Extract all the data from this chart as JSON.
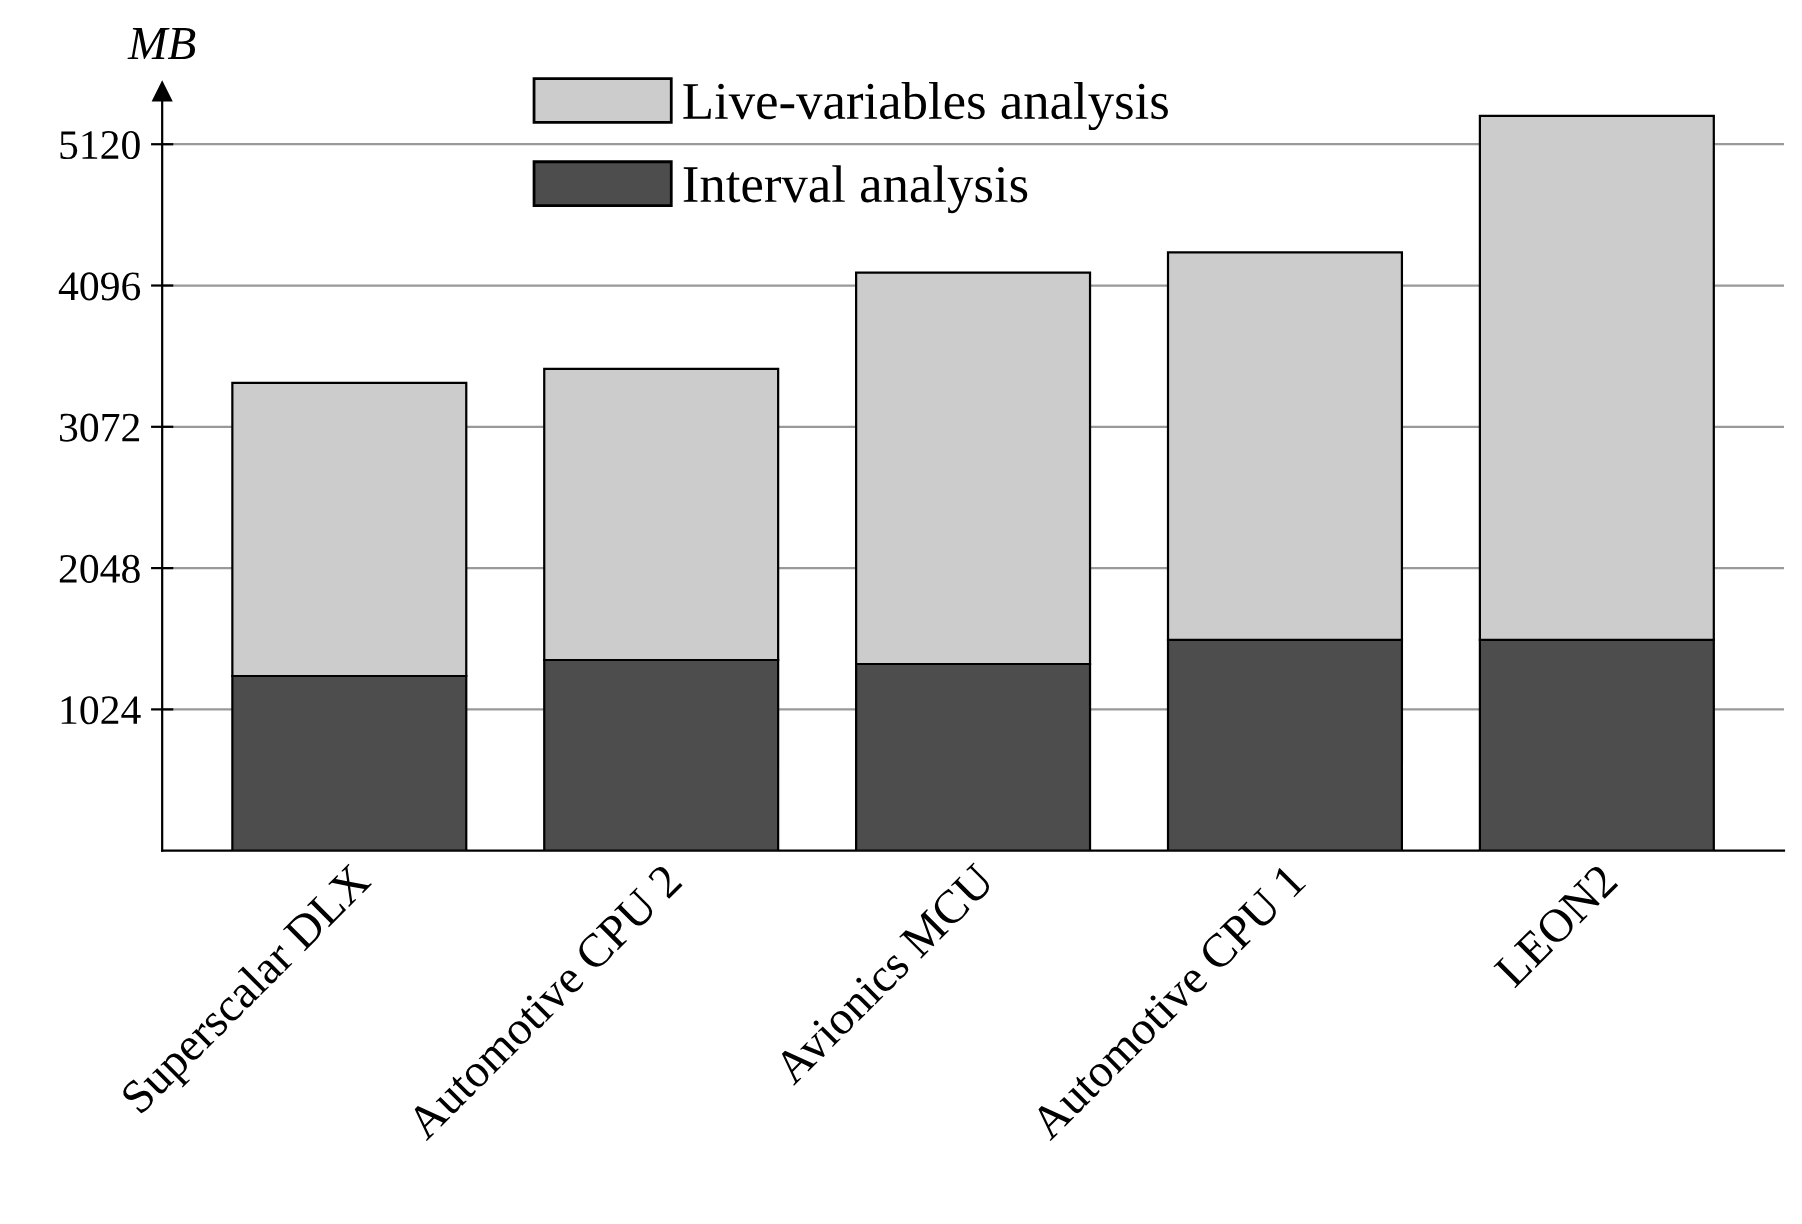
{
  "chart_data": {
    "type": "bar",
    "stacked": true,
    "ylabel": "MB",
    "categories": [
      "Superscalar DLX",
      "Automotive CPU 2",
      "Avionics MCU",
      "Automotive CPU 1",
      "LEON2"
    ],
    "series": [
      {
        "name": "Interval analysis",
        "color": "#4d4d4d",
        "values": [
          1266,
          1382,
          1353,
          1528,
          1528
        ]
      },
      {
        "name": "Live-variables analysis",
        "color": "#cccccc",
        "values": [
          2124,
          2110,
          2837,
          2808,
          3797
        ]
      }
    ],
    "ylim": [
      0,
      5500
    ],
    "yticks": [
      1024,
      2048,
      3072,
      4096,
      5120
    ],
    "grid": "y",
    "legend": "top left"
  }
}
